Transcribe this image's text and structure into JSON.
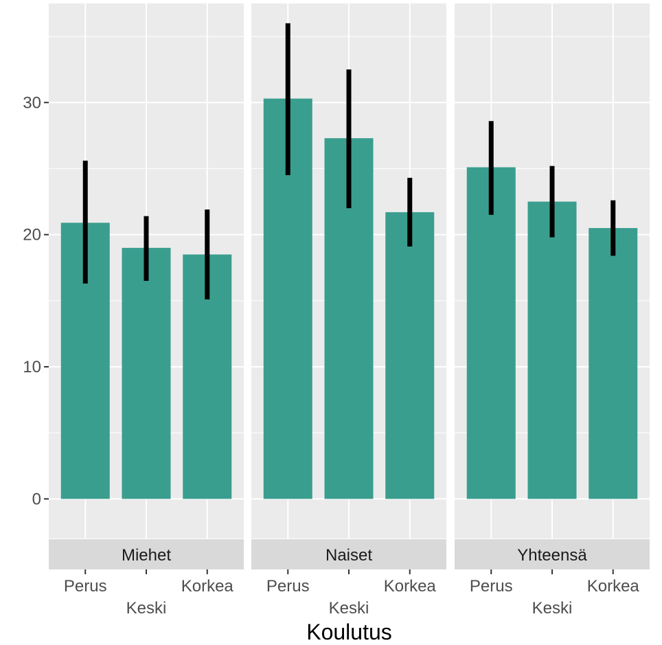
{
  "chart_data": {
    "type": "bar",
    "facet_layout": "columns",
    "strip_position": "bottom",
    "xlabel": "Koulutus",
    "ylabel": "",
    "ylim": [
      -3,
      37.5
    ],
    "y_ticks": [
      "0",
      "10",
      "20",
      "30"
    ],
    "y_tick_values": [
      0,
      10,
      20,
      30
    ],
    "categories": [
      "Perus",
      "Keski",
      "Korkea"
    ],
    "category_label_rows": [
      0,
      1,
      0
    ],
    "grid": true,
    "bar_color": "#3a9e8f",
    "errorbar_color": "#000000",
    "panel_background": "#ebebeb",
    "strip_background": "#d9d9d9",
    "panels": [
      {
        "name": "Miehet",
        "values": [
          20.9,
          19.0,
          18.5
        ],
        "error_low": [
          16.3,
          16.5,
          15.1
        ],
        "error_high": [
          25.6,
          21.4,
          21.9
        ]
      },
      {
        "name": "Naiset",
        "values": [
          30.3,
          27.3,
          21.7
        ],
        "error_low": [
          24.5,
          22.0,
          19.1
        ],
        "error_high": [
          36.0,
          32.5,
          24.3
        ]
      },
      {
        "name": "Yhteensä",
        "values": [
          25.1,
          22.5,
          20.5
        ],
        "error_low": [
          21.5,
          19.8,
          18.4
        ],
        "error_high": [
          28.6,
          25.2,
          22.6
        ]
      }
    ]
  }
}
